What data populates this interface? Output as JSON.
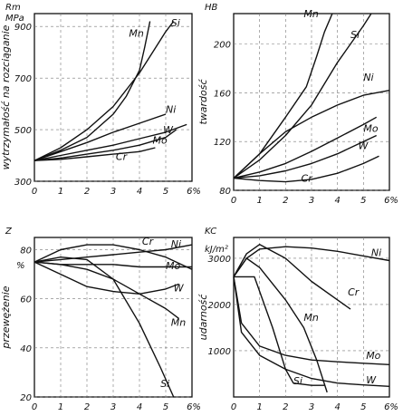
{
  "chart_data": [
    {
      "type": "line",
      "ylabel_top": "Rm",
      "ylabel_unit": "MPa",
      "ylabel": "wytrzymałość na rozciąganie",
      "xlabel": "6%",
      "x_ticks": [
        "0",
        "1",
        "2",
        "3",
        "4",
        "5"
      ],
      "y_ticks": [
        "300",
        "500",
        "700",
        "900"
      ],
      "xlim": [
        0,
        6
      ],
      "ylim": [
        300,
        950
      ],
      "series": [
        {
          "name": "Mn",
          "points": [
            [
              0,
              380
            ],
            [
              1,
              420
            ],
            [
              2,
              470
            ],
            [
              3,
              560
            ],
            [
              3.5,
              630
            ],
            [
              4,
              730
            ],
            [
              4.2,
              820
            ],
            [
              4.4,
              920
            ]
          ]
        },
        {
          "name": "Si",
          "points": [
            [
              0,
              380
            ],
            [
              1,
              430
            ],
            [
              2,
              500
            ],
            [
              3,
              590
            ],
            [
              4,
              720
            ],
            [
              4.5,
              800
            ],
            [
              5,
              880
            ],
            [
              5.3,
              920
            ]
          ]
        },
        {
          "name": "Ni",
          "points": [
            [
              0,
              380
            ],
            [
              1,
              415
            ],
            [
              2,
              450
            ],
            [
              3,
              490
            ],
            [
              4,
              525
            ],
            [
              5,
              560
            ]
          ]
        },
        {
          "name": "W",
          "points": [
            [
              0,
              380
            ],
            [
              1,
              400
            ],
            [
              2,
              420
            ],
            [
              3,
              440
            ],
            [
              4,
              465
            ],
            [
              5,
              490
            ],
            [
              5.8,
              520
            ]
          ]
        },
        {
          "name": "Mo",
          "points": [
            [
              0,
              380
            ],
            [
              1,
              390
            ],
            [
              2,
              405
            ],
            [
              3,
              420
            ],
            [
              4,
              440
            ],
            [
              5,
              470
            ],
            [
              5.4,
              500
            ]
          ]
        },
        {
          "name": "Cr",
          "points": [
            [
              0,
              380
            ],
            [
              1,
              385
            ],
            [
              2,
              395
            ],
            [
              3,
              405
            ],
            [
              4,
              415
            ],
            [
              4.6,
              430
            ]
          ]
        }
      ]
    },
    {
      "type": "line",
      "ylabel_top": "HB",
      "ylabel": "twardość",
      "xlabel": "6%",
      "x_ticks": [
        "0",
        "1",
        "2",
        "3",
        "4",
        "5"
      ],
      "y_ticks": [
        "80",
        "120",
        "160",
        "200"
      ],
      "xlim": [
        0,
        6
      ],
      "ylim": [
        80,
        225
      ],
      "series": [
        {
          "name": "Mn",
          "points": [
            [
              0,
              90
            ],
            [
              1,
              110
            ],
            [
              2,
              140
            ],
            [
              2.8,
              165
            ],
            [
              3.2,
              190
            ],
            [
              3.5,
              210
            ],
            [
              3.8,
              225
            ]
          ]
        },
        {
          "name": "Si",
          "points": [
            [
              0,
              90
            ],
            [
              1,
              105
            ],
            [
              2,
              125
            ],
            [
              3,
              150
            ],
            [
              4,
              185
            ],
            [
              5,
              215
            ],
            [
              5.3,
              225
            ]
          ]
        },
        {
          "name": "Ni",
          "points": [
            [
              0,
              90
            ],
            [
              1,
              110
            ],
            [
              2,
              128
            ],
            [
              3,
              140
            ],
            [
              4,
              150
            ],
            [
              5,
              158
            ],
            [
              6,
              162
            ]
          ]
        },
        {
          "name": "Mo",
          "points": [
            [
              0,
              90
            ],
            [
              1,
              95
            ],
            [
              2,
              102
            ],
            [
              3,
              112
            ],
            [
              4,
              123
            ],
            [
              5,
              134
            ],
            [
              5.5,
              140
            ]
          ]
        },
        {
          "name": "W",
          "points": [
            [
              0,
              90
            ],
            [
              1,
              92
            ],
            [
              2,
              96
            ],
            [
              3,
              102
            ],
            [
              4,
              110
            ],
            [
              5,
              120
            ],
            [
              5.5,
              125
            ]
          ]
        },
        {
          "name": "Cr",
          "points": [
            [
              0,
              90
            ],
            [
              1,
              88
            ],
            [
              2,
              87
            ],
            [
              3,
              89
            ],
            [
              4,
              94
            ],
            [
              5,
              102
            ],
            [
              5.6,
              108
            ]
          ]
        }
      ]
    },
    {
      "type": "line",
      "ylabel_top": "Z",
      "ylabel_unit": "%",
      "ylabel": "przewężenie",
      "xlabel": "6%",
      "x_ticks": [
        "0",
        "1",
        "2",
        "3",
        "4",
        "5"
      ],
      "y_ticks": [
        "20",
        "40",
        "60",
        "80"
      ],
      "xlim": [
        0,
        6
      ],
      "ylim": [
        20,
        85
      ],
      "series": [
        {
          "name": "Cr",
          "points": [
            [
              0,
              75
            ],
            [
              1,
              80
            ],
            [
              2,
              82
            ],
            [
              3,
              82
            ],
            [
              4,
              80
            ],
            [
              5,
              77
            ],
            [
              6,
              72
            ]
          ]
        },
        {
          "name": "Ni",
          "points": [
            [
              0,
              75
            ],
            [
              1,
              76
            ],
            [
              2,
              77
            ],
            [
              3,
              78
            ],
            [
              4,
              79
            ],
            [
              5,
              80
            ],
            [
              6,
              82
            ]
          ]
        },
        {
          "name": "Mo",
          "points": [
            [
              0,
              75
            ],
            [
              1,
              74
            ],
            [
              2,
              74
            ],
            [
              3,
              74
            ],
            [
              4,
              73
            ],
            [
              5,
              73
            ],
            [
              6,
              73
            ]
          ]
        },
        {
          "name": "W",
          "points": [
            [
              0,
              75
            ],
            [
              1,
              70
            ],
            [
              2,
              65
            ],
            [
              3,
              63
            ],
            [
              4,
              62
            ],
            [
              5,
              64
            ],
            [
              5.5,
              66
            ]
          ]
        },
        {
          "name": "Mn",
          "points": [
            [
              0,
              75
            ],
            [
              1,
              74
            ],
            [
              2,
              72
            ],
            [
              3,
              68
            ],
            [
              4,
              62
            ],
            [
              5,
              56
            ],
            [
              5.5,
              52
            ]
          ]
        },
        {
          "name": "Si",
          "points": [
            [
              0,
              75
            ],
            [
              1,
              77
            ],
            [
              2,
              76
            ],
            [
              3,
              68
            ],
            [
              4,
              50
            ],
            [
              4.8,
              32
            ],
            [
              5.3,
              20
            ]
          ]
        }
      ]
    },
    {
      "type": "line",
      "ylabel_top": "KC",
      "ylabel_unit": "kJ/m²",
      "ylabel": "udarność",
      "xlabel": "6%",
      "x_ticks": [
        "0",
        "1",
        "2",
        "3",
        "4",
        "5"
      ],
      "y_ticks": [
        "1000",
        "2000",
        "3000"
      ],
      "xlim": [
        0,
        6
      ],
      "ylim": [
        0,
        3450
      ],
      "series": [
        {
          "name": "Ni",
          "points": [
            [
              0,
              2600
            ],
            [
              0.5,
              3000
            ],
            [
              1,
              3200
            ],
            [
              2,
              3250
            ],
            [
              3,
              3220
            ],
            [
              4,
              3150
            ],
            [
              5,
              3050
            ],
            [
              6,
              2950
            ]
          ]
        },
        {
          "name": "Cr",
          "points": [
            [
              0,
              2600
            ],
            [
              0.5,
              3100
            ],
            [
              1,
              3300
            ],
            [
              2,
              3000
            ],
            [
              3,
              2500
            ],
            [
              4,
              2100
            ],
            [
              4.5,
              1900
            ]
          ]
        },
        {
          "name": "Mn",
          "points": [
            [
              0,
              2600
            ],
            [
              0.5,
              3000
            ],
            [
              1,
              2800
            ],
            [
              2,
              2100
            ],
            [
              2.7,
              1500
            ],
            [
              3.2,
              800
            ],
            [
              3.6,
              100
            ]
          ]
        },
        {
          "name": "Mo",
          "points": [
            [
              0,
              2600
            ],
            [
              0.3,
              1600
            ],
            [
              1,
              1100
            ],
            [
              2,
              900
            ],
            [
              3,
              800
            ],
            [
              4,
              760
            ],
            [
              5,
              730
            ],
            [
              6,
              700
            ]
          ]
        },
        {
          "name": "W",
          "points": [
            [
              0,
              2600
            ],
            [
              0.3,
              1400
            ],
            [
              1,
              900
            ],
            [
              2,
              600
            ],
            [
              3,
              400
            ],
            [
              4,
              300
            ],
            [
              5,
              260
            ],
            [
              6,
              230
            ]
          ]
        },
        {
          "name": "Si",
          "points": [
            [
              0,
              2600
            ],
            [
              0.8,
              2600
            ],
            [
              1.5,
              1500
            ],
            [
              2,
              600
            ],
            [
              2.3,
              300
            ],
            [
              3,
              250
            ],
            [
              3.5,
              250
            ]
          ]
        }
      ]
    }
  ]
}
